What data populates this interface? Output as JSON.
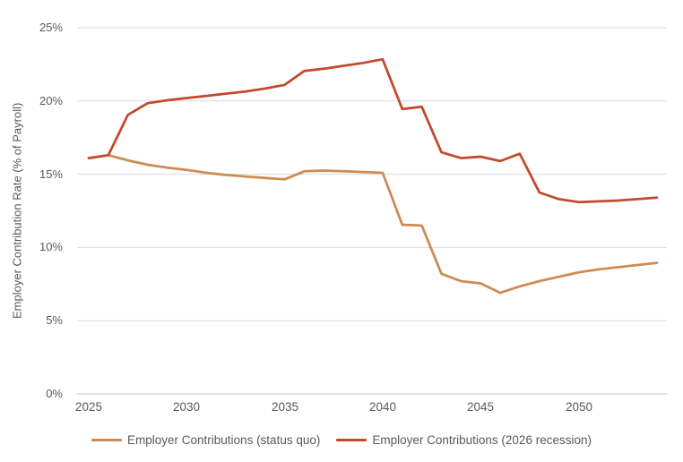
{
  "chart_data": {
    "type": "line",
    "title": "",
    "xlabel": "",
    "ylabel": "Employer Contribution Rate (% of Payroll)",
    "x": [
      2025,
      2026,
      2027,
      2028,
      2029,
      2030,
      2031,
      2032,
      2033,
      2034,
      2035,
      2036,
      2037,
      2038,
      2039,
      2040,
      2041,
      2042,
      2043,
      2044,
      2045,
      2046,
      2047,
      2048,
      2049,
      2050,
      2051,
      2052,
      2053,
      2054
    ],
    "series": [
      {
        "name": "Employer Contributions (status quo)",
        "color": "#CE8B51",
        "values": [
          16.1,
          16.3,
          15.95,
          15.65,
          15.45,
          15.3,
          15.1,
          14.95,
          14.85,
          14.75,
          14.65,
          15.2,
          15.25,
          15.2,
          15.15,
          15.1,
          11.55,
          11.5,
          8.2,
          7.7,
          7.55,
          6.9,
          7.35,
          7.7,
          8.0,
          8.3,
          8.5,
          8.65,
          8.8,
          8.95
        ]
      },
      {
        "name": "Employer Contributions (2026 recession)",
        "color": "#C3492D",
        "values": [
          16.1,
          16.3,
          19.05,
          19.85,
          20.05,
          20.2,
          20.35,
          20.5,
          20.65,
          20.85,
          21.1,
          22.05,
          22.2,
          22.4,
          22.6,
          22.85,
          19.45,
          19.6,
          16.5,
          16.1,
          16.2,
          15.9,
          16.4,
          13.75,
          13.3,
          13.1,
          13.15,
          13.2,
          13.3,
          13.4
        ]
      }
    ],
    "ylim": [
      0,
      25
    ],
    "y_tick_values": [
      25,
      20,
      15,
      10,
      5,
      0
    ],
    "y_ticks": [
      "25%",
      "20%",
      "15%",
      "10%",
      "5%",
      "0%"
    ],
    "x_tick_values": [
      2025,
      2030,
      2035,
      2040,
      2045,
      2050
    ],
    "x_ticks": [
      "2025",
      "2030",
      "2035",
      "2040",
      "2045",
      "2050"
    ],
    "grid_on": true,
    "legend_position": "bottom",
    "grid_color": "#D9D9D9",
    "axis_color": "#BFBFBF",
    "text_color": "#595959"
  }
}
